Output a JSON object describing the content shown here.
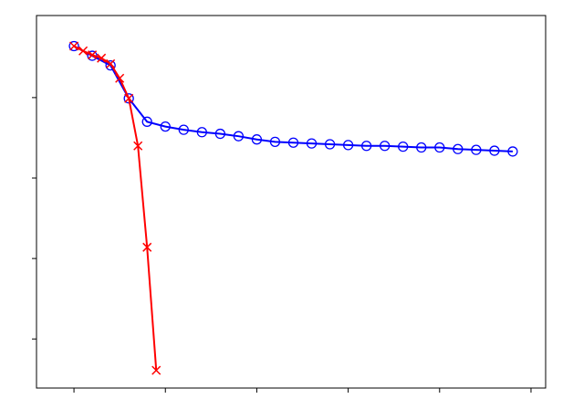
{
  "chart_data": {
    "type": "line",
    "xlim": [
      -0.41,
      5.16
    ],
    "ylim": [
      0.39,
      5.02
    ],
    "xticks": [
      0,
      1,
      2,
      3,
      4,
      5
    ],
    "yticks": [
      1,
      2,
      3,
      4
    ],
    "series": [
      {
        "color": "#0000ff",
        "marker": "circle",
        "x": [
          0,
          0.2,
          0.4,
          0.6,
          0.8,
          1.0,
          1.2,
          1.4,
          1.6,
          1.8,
          2.0,
          2.2,
          2.4,
          2.6,
          2.8,
          3.0,
          3.2,
          3.4,
          3.6,
          3.8,
          4.0,
          4.2,
          4.4,
          4.6,
          4.8
        ],
        "values": [
          4.64,
          4.52,
          4.4,
          3.99,
          3.7,
          3.64,
          3.6,
          3.57,
          3.55,
          3.52,
          3.48,
          3.45,
          3.44,
          3.43,
          3.42,
          3.41,
          3.4,
          3.4,
          3.39,
          3.38,
          3.38,
          3.36,
          3.35,
          3.34,
          3.33
        ]
      },
      {
        "color": "#ff0000",
        "marker": "x",
        "x": [
          0,
          0.1,
          0.2,
          0.3,
          0.4,
          0.5,
          0.6,
          0.7,
          0.8,
          0.9
        ],
        "values": [
          4.64,
          4.58,
          4.53,
          4.49,
          4.42,
          4.24,
          3.99,
          3.4,
          2.14,
          0.61
        ]
      }
    ]
  }
}
